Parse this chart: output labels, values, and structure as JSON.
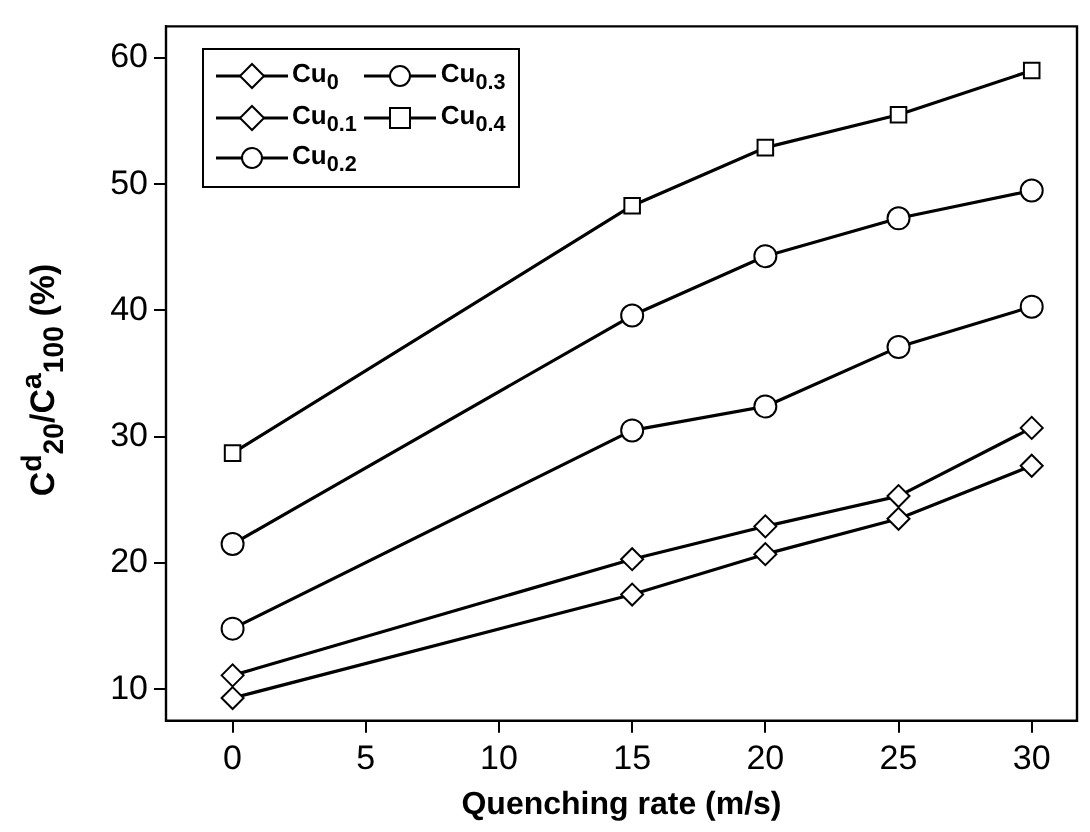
{
  "chart_data": {
    "type": "line",
    "xlabel": "Quenching rate (m/s)",
    "ylabel": "C$^{d}$$_{20}$/C$^{a}$$_{100}$ (%)",
    "x": [
      0,
      15,
      20,
      25,
      30
    ],
    "xlim": [
      -2.5,
      31.7
    ],
    "xticks": [
      0,
      5,
      10,
      15,
      20,
      25,
      30
    ],
    "ylim": [
      7.5,
      62.5
    ],
    "yticks": [
      10,
      20,
      30,
      40,
      50,
      60
    ],
    "grid": false,
    "legend": "top left",
    "line_style": "solid",
    "series": [
      {
        "name": "Cu$_{0}$",
        "color": "#000000",
        "marker": "diamond",
        "values": [
          9.3,
          17.5,
          20.7,
          23.5,
          27.7
        ]
      },
      {
        "name": "Cu$_{0.1}$",
        "color": "#000000",
        "marker": "diamond",
        "values": [
          11.1,
          20.3,
          22.9,
          25.3,
          30.7
        ]
      },
      {
        "name": "Cu$_{0.2}$",
        "color": "#000000",
        "marker": "circle",
        "values": [
          14.8,
          30.5,
          32.4,
          37.1,
          40.3
        ]
      },
      {
        "name": "Cu$_{0.3}$",
        "color": "#000000",
        "marker": "circle",
        "values": [
          21.5,
          39.6,
          44.3,
          47.3,
          49.5
        ]
      },
      {
        "name": "Cu$_{0.4}$",
        "color": "#000000",
        "marker": "square",
        "values": [
          28.7,
          48.3,
          52.9,
          55.5,
          59.0
        ]
      }
    ]
  }
}
